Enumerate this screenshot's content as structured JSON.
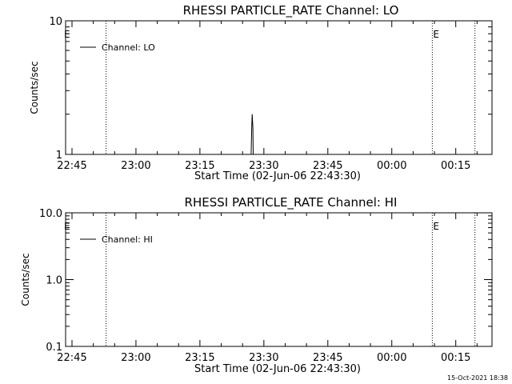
{
  "chart_data": [
    {
      "type": "line",
      "title": "RHESSI PARTICLE_RATE Channel: LO",
      "xlabel": "Start Time (02-Jun-06 22:43:30)",
      "ylabel": "Counts/sec",
      "yscale": "log",
      "ylim": [
        1,
        10
      ],
      "xlim": [
        "22:43:30",
        "00:23:30"
      ],
      "x_ticks": [
        "22:45",
        "23:00",
        "23:15",
        "23:30",
        "23:45",
        "00:00",
        "00:15"
      ],
      "y_ticks": [
        "1",
        "10"
      ],
      "legend": {
        "placement": "top-left",
        "entries": [
          "Channel: LO"
        ]
      },
      "vlines": [
        {
          "time": "22:53:00",
          "label": ""
        },
        {
          "time": "00:09:30",
          "label": "E"
        },
        {
          "time": "00:19:30",
          "label": ""
        }
      ],
      "edge_markers": [
        "E"
      ],
      "series": [
        {
          "name": "Channel: LO",
          "x": [
            "23:27:00",
            "23:27:10",
            "23:27:15",
            "23:27:25",
            "23:27:30",
            "23:27:40"
          ],
          "y": [
            1,
            1.6,
            2.0,
            1.6,
            1,
            1
          ]
        }
      ]
    },
    {
      "type": "line",
      "title": "RHESSI PARTICLE_RATE Channel: HI",
      "xlabel": "Start Time (02-Jun-06 22:43:30)",
      "ylabel": "Counts/sec",
      "yscale": "log",
      "ylim": [
        0.1,
        10
      ],
      "xlim": [
        "22:43:30",
        "00:23:30"
      ],
      "x_ticks": [
        "22:45",
        "23:00",
        "23:15",
        "23:30",
        "23:45",
        "00:00",
        "00:15"
      ],
      "y_ticks": [
        "0.1",
        "1.0",
        "10.0"
      ],
      "legend": {
        "placement": "top-left",
        "entries": [
          "Channel: HI"
        ]
      },
      "vlines": [
        {
          "time": "22:53:00",
          "label": ""
        },
        {
          "time": "00:09:30",
          "label": "E"
        },
        {
          "time": "00:19:30",
          "label": ""
        }
      ],
      "edge_markers": [
        "E"
      ],
      "series": [
        {
          "name": "Channel: HI",
          "x": [],
          "y": []
        }
      ]
    }
  ],
  "footer": {
    "timestamp": "15-Oct-2021 18:38"
  }
}
